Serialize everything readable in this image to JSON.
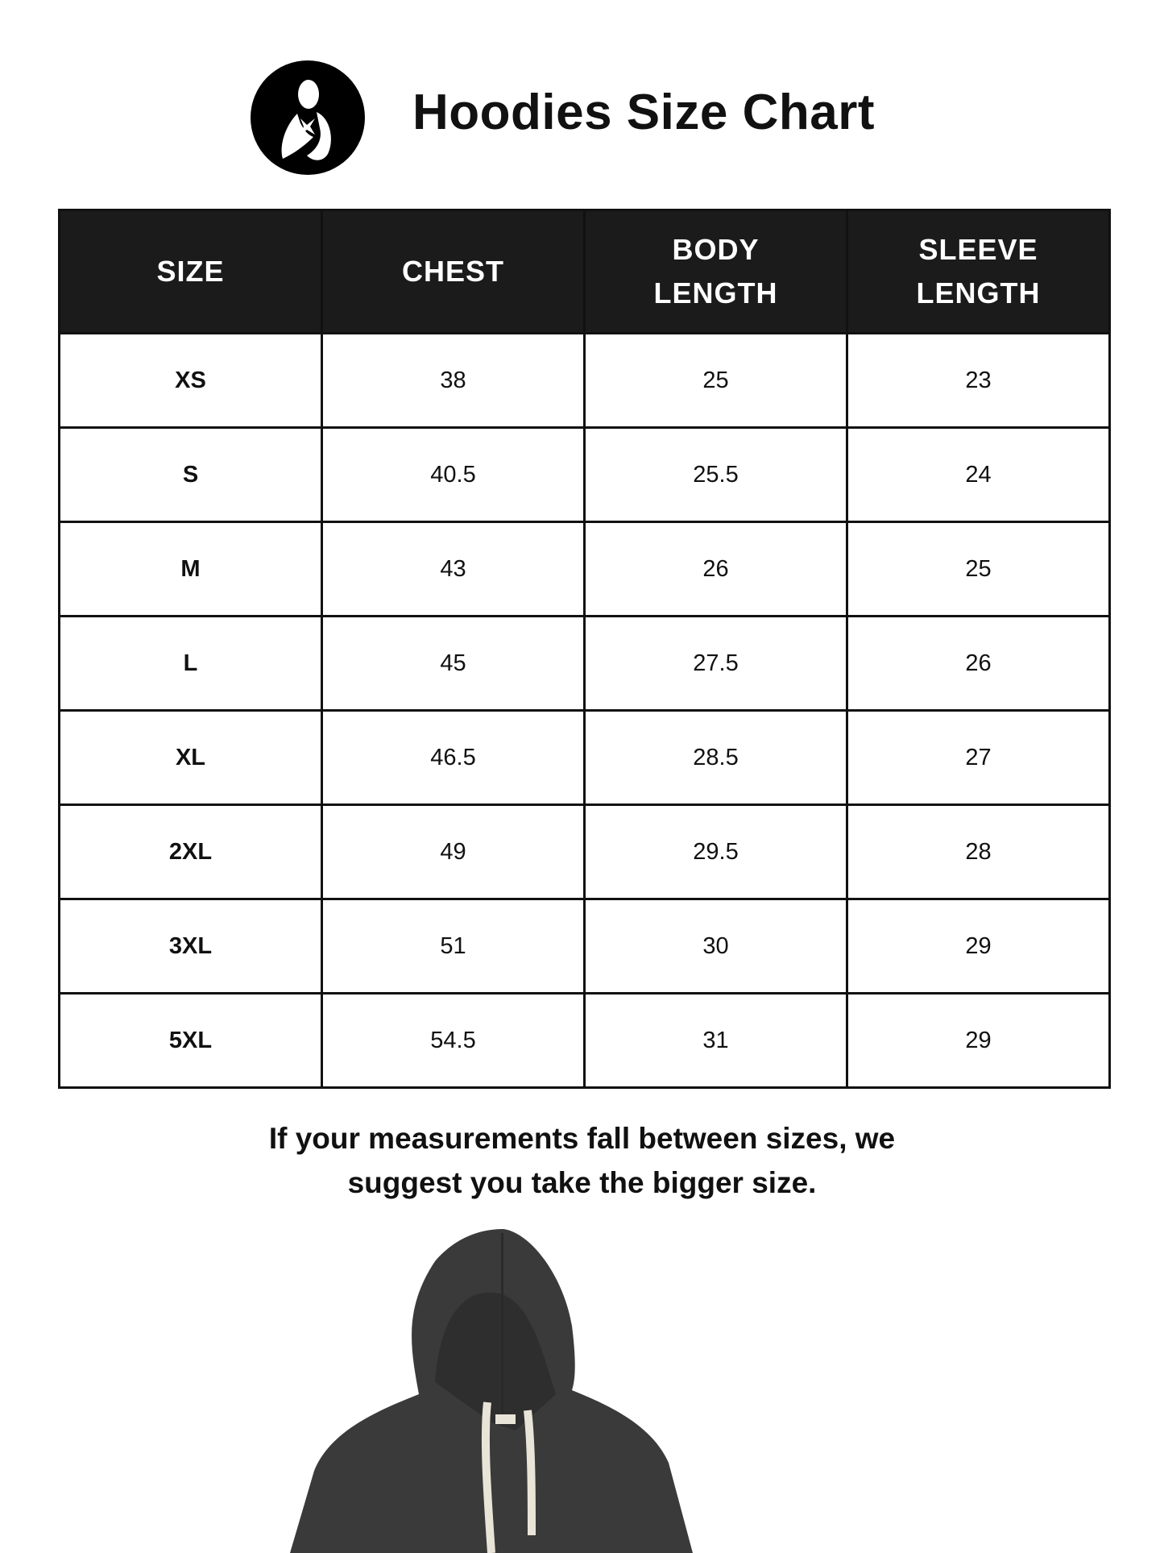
{
  "title": "Hoodies Size Chart",
  "logo": {
    "icon": "mother-holding-baby-logo",
    "color": "#000000"
  },
  "table": {
    "headers": [
      [
        "SIZE"
      ],
      [
        "CHEST"
      ],
      [
        "BODY",
        "LENGTH"
      ],
      [
        "SLEEVE",
        "LENGTH"
      ]
    ],
    "rows": [
      [
        "XS",
        "38",
        "25",
        "23"
      ],
      [
        "S",
        "40.5",
        "25.5",
        "24"
      ],
      [
        "M",
        "43",
        "26",
        "25"
      ],
      [
        "L",
        "45",
        "27.5",
        "26"
      ],
      [
        "XL",
        "46.5",
        "28.5",
        "27"
      ],
      [
        "2XL",
        "49",
        "29.5",
        "28"
      ],
      [
        "3XL",
        "51",
        "30",
        "29"
      ],
      [
        "5XL",
        "54.5",
        "31",
        "29"
      ]
    ],
    "header_bg": "#1b1b1b"
  },
  "note": [
    "If your measurements fall between sizes, we",
    "suggest you take the bigger size."
  ],
  "product_image": {
    "subject": "charcoal-hoodie",
    "color": "#3a3a3a"
  }
}
